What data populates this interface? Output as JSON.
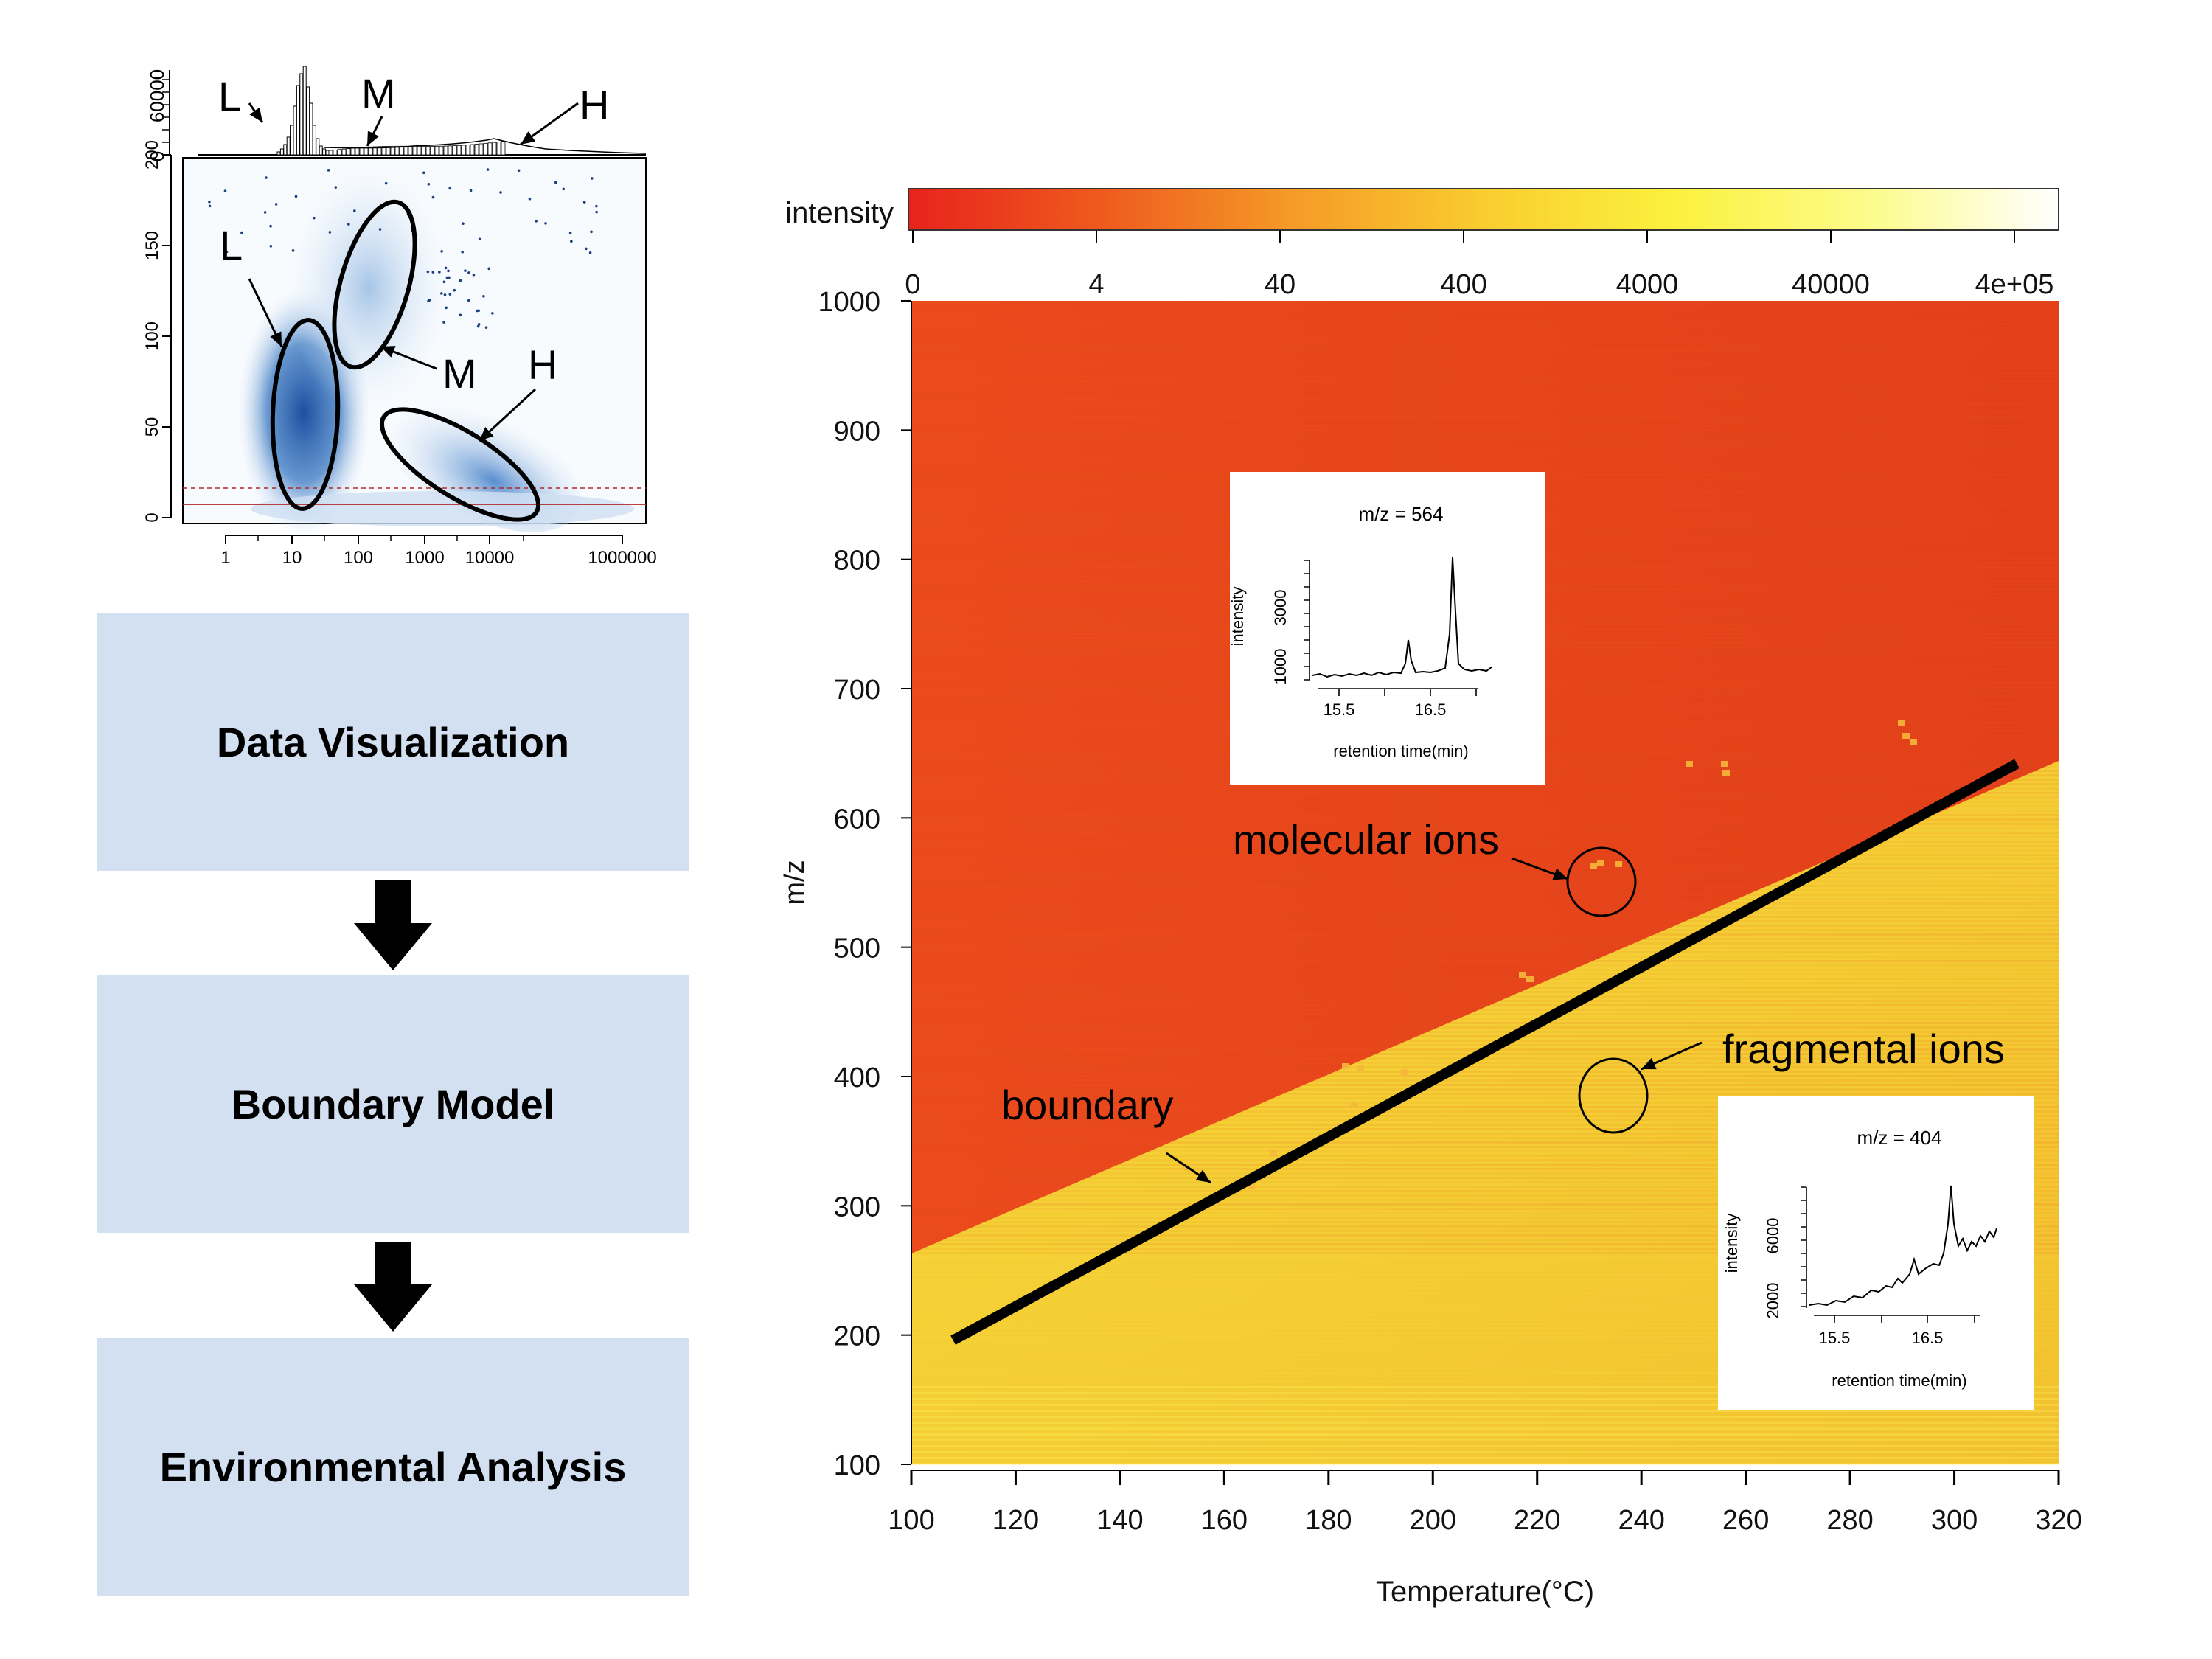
{
  "flow": {
    "steps": [
      "Data Visualization",
      "Boundary Model",
      "Environmental Analysis"
    ]
  },
  "density_panel": {
    "hist_yticks": [
      "0",
      "60000"
    ],
    "yticks": [
      "0",
      "50",
      "100",
      "150",
      "200"
    ],
    "xticks": [
      "1",
      "10",
      "100",
      "1000",
      "10000",
      "1000000"
    ],
    "hist_labels": [
      "L",
      "M",
      "H"
    ],
    "cluster_labels": [
      "L",
      "M",
      "H"
    ]
  },
  "chart_data": {
    "type": "heatmap",
    "xlabel": "Temperature(°C)",
    "ylabel": "m/z",
    "xlim": [
      100,
      320
    ],
    "ylim": [
      100,
      1000
    ],
    "xticks": [
      "100",
      "120",
      "140",
      "160",
      "180",
      "200",
      "220",
      "240",
      "260",
      "280",
      "300",
      "320"
    ],
    "yticks": [
      "100",
      "200",
      "300",
      "400",
      "500",
      "600",
      "700",
      "800",
      "900",
      "1000"
    ],
    "colorbar": {
      "label": "intensity",
      "ticks": [
        "0",
        "4",
        "40",
        "400",
        "4000",
        "40000",
        "4e+05"
      ],
      "colors": [
        "#e8231c",
        "#ee5a1e",
        "#f59a27",
        "#f9cd2f",
        "#fbf13e",
        "#fcfb8a",
        "#ffffff"
      ]
    },
    "boundary": {
      "label": "boundary",
      "from": [
        108,
        196
      ],
      "to": [
        312,
        642
      ]
    },
    "annotations": [
      "molecular ions",
      "fragmental ions"
    ],
    "low_color": "#e0401a",
    "high_color": "#f6d031",
    "insets": [
      {
        "title": "m/z =  564",
        "ylabel": "intensity",
        "xlabel": "retention time(min)",
        "xticks": [
          "15.5",
          "16.5"
        ],
        "yticks": [
          "1000",
          "3000"
        ]
      },
      {
        "title": "m/z =  404",
        "ylabel": "intensity",
        "xlabel": "retention time(min)",
        "xticks": [
          "15.5",
          "16.5"
        ],
        "yticks": [
          "2000",
          "6000"
        ]
      }
    ]
  }
}
